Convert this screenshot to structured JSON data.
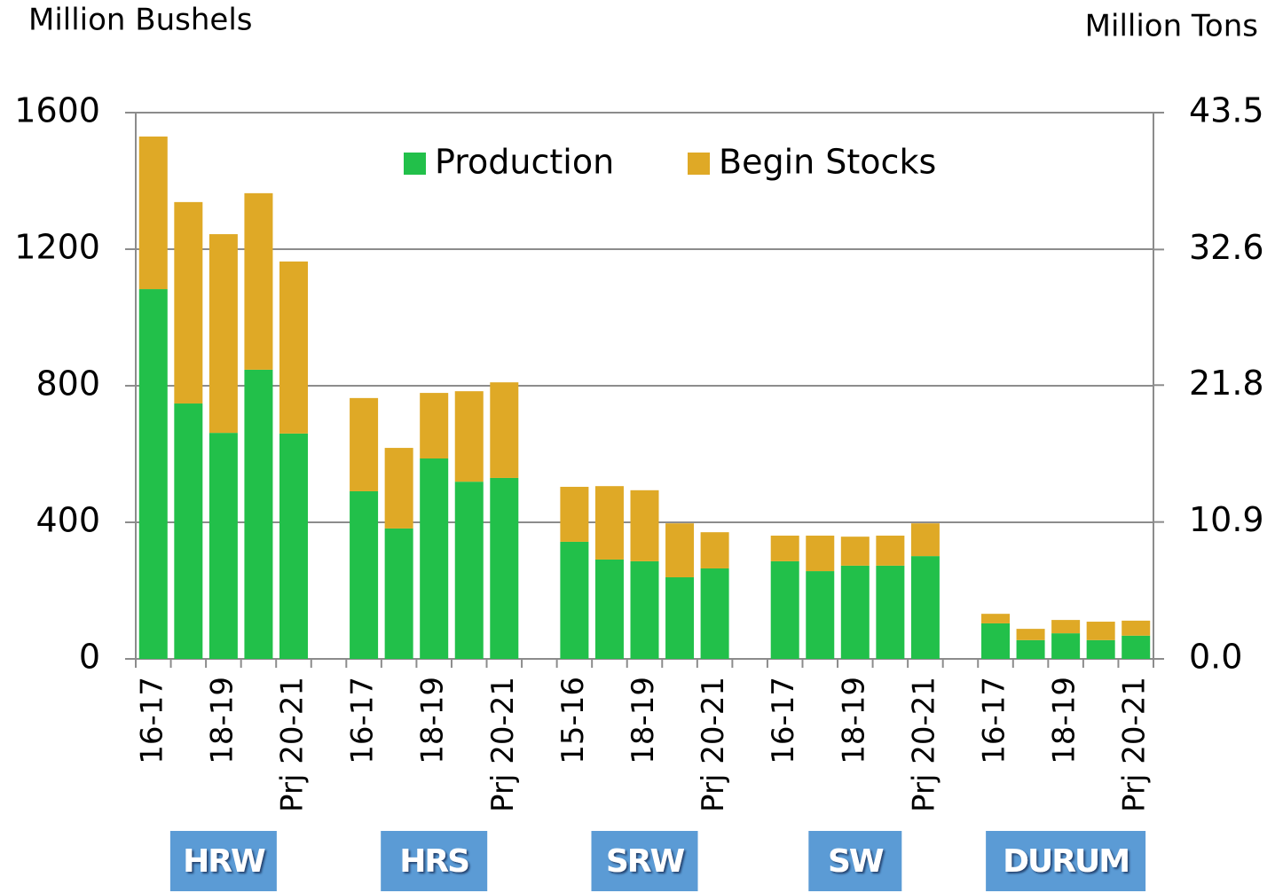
{
  "chart_data": {
    "type": "stacked_bar",
    "y_label": "Million Bushels",
    "y2_label": "Million Tons",
    "categories": [
      "16-17",
      null,
      "18-19",
      null,
      "Prj 20-21",
      null,
      "16-17",
      null,
      "18-19",
      null,
      "Prj 20-21",
      null,
      "15-16",
      null,
      "18-19",
      null,
      "Prj 20-21",
      null,
      "16-17",
      null,
      "18-19",
      null,
      "Prj 20-21",
      null,
      "16-17",
      null,
      "18-19",
      null,
      "Prj 20-21"
    ],
    "groups": [
      "HRW",
      "HRS",
      "SRW",
      "SW",
      "DURUM"
    ],
    "series": [
      {
        "name": "Production",
        "color": "#22c04a",
        "values": [
          1083,
          748,
          662,
          847,
          660,
          null,
          491,
          382,
          587,
          519,
          530,
          null,
          343,
          291,
          286,
          239,
          265,
          null,
          286,
          257,
          273,
          273,
          301,
          null,
          104,
          55,
          75,
          55,
          68
        ]
      },
      {
        "name": "Begin Stocks",
        "color": "#dfa926",
        "values": [
          447,
          590,
          582,
          517,
          504,
          null,
          273,
          236,
          192,
          265,
          280,
          null,
          161,
          215,
          208,
          158,
          106,
          null,
          75,
          104,
          85,
          88,
          96,
          null,
          28,
          33,
          39,
          54,
          44
        ]
      }
    ],
    "ylim": [
      0,
      1600
    ],
    "yticks": [
      0,
      400,
      800,
      1200,
      1600
    ],
    "y2lim": [
      0,
      43.5
    ],
    "y2ticks": [
      {
        "value": 0,
        "label": "0.0"
      },
      10.9,
      21.8,
      32.6,
      43.5
    ],
    "grid": true,
    "legend": "top"
  }
}
